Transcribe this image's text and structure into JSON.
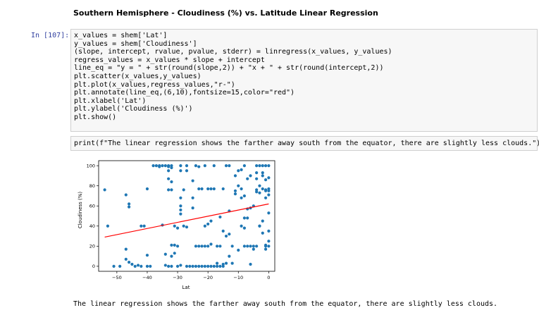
{
  "heading": "Southern Hemisphere - Cloudiness (%) vs. Latitude Linear Regression",
  "prompt_label": "In [107]:",
  "code_lines": [
    "x_values = shem['Lat']",
    "y_values = shem['Cloudiness']",
    "(slope, intercept, rvalue, pvalue, stderr) = linregress(x_values, y_values)",
    "regress_values = x_values * slope + intercept",
    "line_eq = \"y = \" + str(round(slope,2)) + \"x + \" + str(round(intercept,2))",
    "plt.scatter(x_values,y_values)",
    "plt.plot(x_values,regress_values,\"r-\")",
    "plt.annotate(line_eq,(6,10),fontsize=15,color=\"red\")",
    "plt.xlabel('Lat')",
    "plt.ylabel('Cloudiness (%)')",
    "plt.show()"
  ],
  "print_line": "print(f\"The linear regression shows the farther away south from the equator, there are slightly less clouds.\")",
  "output_text": "The linear regression shows the farther away south from the equator, there are slightly less clouds.",
  "colors": {
    "points": "#1f77b4",
    "regression": "#ff0000"
  },
  "chart_data": {
    "type": "scatter",
    "xlabel": "Lat",
    "ylabel": "Cloudiness (%)",
    "xlim": [
      -56,
      2
    ],
    "ylim": [
      -5,
      105
    ],
    "xticks": [
      -50,
      -40,
      -30,
      -20,
      -10,
      0
    ],
    "yticks": [
      0,
      20,
      40,
      60,
      80,
      100
    ],
    "grid": false,
    "regression_line": {
      "x": [
        -54,
        0
      ],
      "y": [
        29,
        62
      ]
    },
    "points": [
      [
        -54,
        76
      ],
      [
        -53,
        40
      ],
      [
        -51,
        0
      ],
      [
        -49,
        0
      ],
      [
        -47,
        17
      ],
      [
        -47,
        7
      ],
      [
        -47,
        71
      ],
      [
        -46,
        62
      ],
      [
        -46,
        59
      ],
      [
        -46,
        4
      ],
      [
        -45,
        2
      ],
      [
        -44,
        0
      ],
      [
        -43,
        1
      ],
      [
        -42,
        0
      ],
      [
        -42,
        40
      ],
      [
        -41,
        40
      ],
      [
        -40,
        0
      ],
      [
        -40,
        77
      ],
      [
        -40,
        11
      ],
      [
        -39,
        0
      ],
      [
        -38,
        100
      ],
      [
        -37,
        100
      ],
      [
        -36,
        99
      ],
      [
        -36,
        100
      ],
      [
        -35,
        100
      ],
      [
        -35,
        41
      ],
      [
        -34,
        1
      ],
      [
        -34,
        12
      ],
      [
        -34,
        100
      ],
      [
        -33,
        100
      ],
      [
        -33,
        99
      ],
      [
        -33,
        95
      ],
      [
        -33,
        87
      ],
      [
        -33,
        76
      ],
      [
        -33,
        0
      ],
      [
        -32,
        100
      ],
      [
        -32,
        98
      ],
      [
        -32,
        84
      ],
      [
        -32,
        76
      ],
      [
        -32,
        21
      ],
      [
        -32,
        10
      ],
      [
        -32,
        0
      ],
      [
        -31,
        21
      ],
      [
        -31,
        40
      ],
      [
        -31,
        13
      ],
      [
        -30,
        20
      ],
      [
        -30,
        38
      ],
      [
        -30,
        0
      ],
      [
        -29,
        100
      ],
      [
        -29,
        95
      ],
      [
        -29,
        68
      ],
      [
        -29,
        60
      ],
      [
        -29,
        56
      ],
      [
        -29,
        52
      ],
      [
        -29,
        1
      ],
      [
        -28,
        40
      ],
      [
        -28,
        76
      ],
      [
        -27,
        39
      ],
      [
        -27,
        100
      ],
      [
        -27,
        95
      ],
      [
        -27,
        0
      ],
      [
        -26,
        0
      ],
      [
        -25,
        0
      ],
      [
        -25,
        85
      ],
      [
        -25,
        68
      ],
      [
        -25,
        58
      ],
      [
        -24,
        100
      ],
      [
        -24,
        0
      ],
      [
        -24,
        20
      ],
      [
        -23,
        99
      ],
      [
        -23,
        77
      ],
      [
        -23,
        20
      ],
      [
        -23,
        0
      ],
      [
        -22,
        77
      ],
      [
        -22,
        20
      ],
      [
        -22,
        0
      ],
      [
        -21,
        100
      ],
      [
        -21,
        40
      ],
      [
        -21,
        20
      ],
      [
        -21,
        0
      ],
      [
        -20,
        77
      ],
      [
        -20,
        20
      ],
      [
        -20,
        0
      ],
      [
        -20,
        42
      ],
      [
        -19,
        77
      ],
      [
        -19,
        45
      ],
      [
        -19,
        22
      ],
      [
        -19,
        0
      ],
      [
        -18,
        100
      ],
      [
        -18,
        77
      ],
      [
        -18,
        0
      ],
      [
        -17,
        20
      ],
      [
        -17,
        3
      ],
      [
        -17,
        0
      ],
      [
        -16,
        20
      ],
      [
        -16,
        0
      ],
      [
        -16,
        49
      ],
      [
        -15,
        2
      ],
      [
        -15,
        0
      ],
      [
        -15,
        35
      ],
      [
        -15,
        77
      ],
      [
        -14,
        100
      ],
      [
        -14,
        30
      ],
      [
        -14,
        3
      ],
      [
        -13,
        100
      ],
      [
        -13,
        55
      ],
      [
        -13,
        32
      ],
      [
        -13,
        10
      ],
      [
        -12,
        3
      ],
      [
        -12,
        20
      ],
      [
        -11,
        90
      ],
      [
        -11,
        75
      ],
      [
        -11,
        72
      ],
      [
        -10,
        80
      ],
      [
        -10,
        95
      ],
      [
        -10,
        16
      ],
      [
        -9,
        96
      ],
      [
        -9,
        77
      ],
      [
        -9,
        68
      ],
      [
        -9,
        40
      ],
      [
        -8,
        70
      ],
      [
        -8,
        20
      ],
      [
        -8,
        100
      ],
      [
        -8,
        48
      ],
      [
        -8,
        38
      ],
      [
        -7,
        87
      ],
      [
        -7,
        57
      ],
      [
        -7,
        48
      ],
      [
        -7,
        20
      ],
      [
        -6,
        90
      ],
      [
        -6,
        58
      ],
      [
        -6,
        2
      ],
      [
        -5,
        60
      ],
      [
        -5,
        20
      ],
      [
        -5,
        17
      ],
      [
        -4,
        100
      ],
      [
        -4,
        93
      ],
      [
        -4,
        87
      ],
      [
        -4,
        76
      ],
      [
        -4,
        20
      ],
      [
        -3,
        100
      ],
      [
        -3,
        80
      ],
      [
        -3,
        73
      ],
      [
        -3,
        40
      ],
      [
        -2,
        100
      ],
      [
        -2,
        93
      ],
      [
        -2,
        90
      ],
      [
        -2,
        77
      ],
      [
        -2,
        45
      ],
      [
        -2,
        33
      ],
      [
        -1,
        100
      ],
      [
        -1,
        86
      ],
      [
        -1,
        76
      ],
      [
        -1,
        75
      ],
      [
        -1,
        68
      ],
      [
        -1,
        20
      ],
      [
        -1,
        21
      ],
      [
        0,
        100
      ],
      [
        0,
        88
      ],
      [
        0,
        77
      ],
      [
        0,
        75
      ],
      [
        0,
        71
      ],
      [
        0,
        53
      ],
      [
        0,
        20
      ],
      [
        0,
        25
      ],
      [
        0,
        35
      ],
      [
        -1,
        17
      ],
      [
        -3,
        40
      ],
      [
        -6,
        20
      ],
      [
        -4,
        74
      ]
    ]
  }
}
